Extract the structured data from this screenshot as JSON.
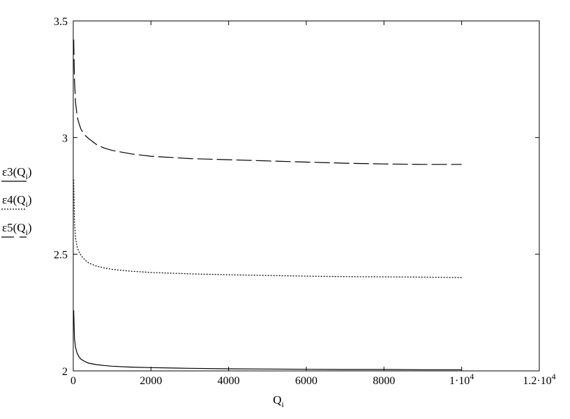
{
  "chart_data": {
    "type": "line",
    "title": "",
    "xlabel": "Q",
    "xlabel_sub": "i",
    "ylabel": "",
    "xlim": [
      0,
      12000
    ],
    "ylim": [
      2,
      3.5
    ],
    "grid": false,
    "x_ticks": [
      {
        "value": 0,
        "base": "0",
        "sup": ""
      },
      {
        "value": 2000,
        "base": "2000",
        "sup": ""
      },
      {
        "value": 4000,
        "base": "4000",
        "sup": ""
      },
      {
        "value": 6000,
        "base": "6000",
        "sup": ""
      },
      {
        "value": 8000,
        "base": "8000",
        "sup": ""
      },
      {
        "value": 10000,
        "base": "1·10",
        "sup": "4"
      },
      {
        "value": 12000,
        "base": "1.2·10",
        "sup": "4"
      }
    ],
    "y_ticks": [
      {
        "value": 2,
        "label": "2"
      },
      {
        "value": 2.5,
        "label": "2.5"
      },
      {
        "value": 3,
        "label": "3"
      },
      {
        "value": 3.5,
        "label": "3.5"
      }
    ],
    "legend_position": "left",
    "series": [
      {
        "name": "ε3(Qi)",
        "name_main": "ε3(Q",
        "name_sub": "i",
        "name_tail": ")",
        "style": "solid",
        "x": [
          10,
          30,
          60,
          100,
          150,
          200,
          300,
          400,
          600,
          800,
          1000,
          1500,
          2000,
          3000,
          4000,
          5000,
          6000,
          7000,
          8000,
          9000,
          10000
        ],
        "y": [
          2.26,
          2.14,
          2.1,
          2.075,
          2.06,
          2.05,
          2.04,
          2.033,
          2.027,
          2.023,
          2.02,
          2.016,
          2.014,
          2.011,
          2.009,
          2.008,
          2.007,
          2.006,
          2.006,
          2.005,
          2.005
        ]
      },
      {
        "name": "ε4(Qi)",
        "name_main": "ε4(Q",
        "name_sub": "i",
        "name_tail": ")",
        "style": "dotted",
        "x": [
          10,
          30,
          60,
          100,
          150,
          200,
          300,
          400,
          600,
          800,
          1000,
          1500,
          2000,
          3000,
          4000,
          5000,
          6000,
          7000,
          8000,
          9000,
          10000
        ],
        "y": [
          2.82,
          2.64,
          2.57,
          2.53,
          2.51,
          2.495,
          2.475,
          2.462,
          2.449,
          2.441,
          2.435,
          2.427,
          2.422,
          2.416,
          2.412,
          2.409,
          2.406,
          2.404,
          2.403,
          2.402,
          2.4
        ]
      },
      {
        "name": "ε5(Qi)",
        "name_main": "ε5(Q",
        "name_sub": "i",
        "name_tail": ")",
        "style": "dashed",
        "x": [
          10,
          30,
          60,
          100,
          150,
          200,
          300,
          400,
          600,
          800,
          1000,
          1500,
          2000,
          3000,
          4000,
          5000,
          6000,
          7000,
          8000,
          9000,
          10000
        ],
        "y": [
          3.42,
          3.25,
          3.15,
          3.09,
          3.06,
          3.035,
          3.01,
          2.995,
          2.97,
          2.955,
          2.945,
          2.93,
          2.92,
          2.91,
          2.905,
          2.9,
          2.895,
          2.89,
          2.887,
          2.885,
          2.885
        ]
      }
    ]
  }
}
